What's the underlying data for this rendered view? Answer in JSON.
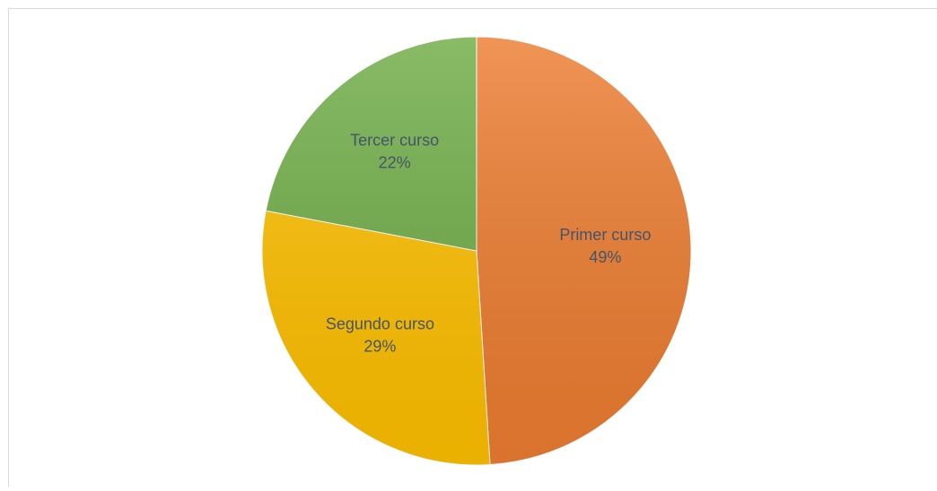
{
  "chart_data": {
    "type": "pie",
    "categories": [
      "Primer curso",
      "Segundo curso",
      "Tercer curso"
    ],
    "values": [
      49,
      29,
      22
    ],
    "value_labels": [
      "49%",
      "29%",
      "22%"
    ],
    "colors": [
      "#ed7d31",
      "#ffc000",
      "#70ad47"
    ]
  }
}
